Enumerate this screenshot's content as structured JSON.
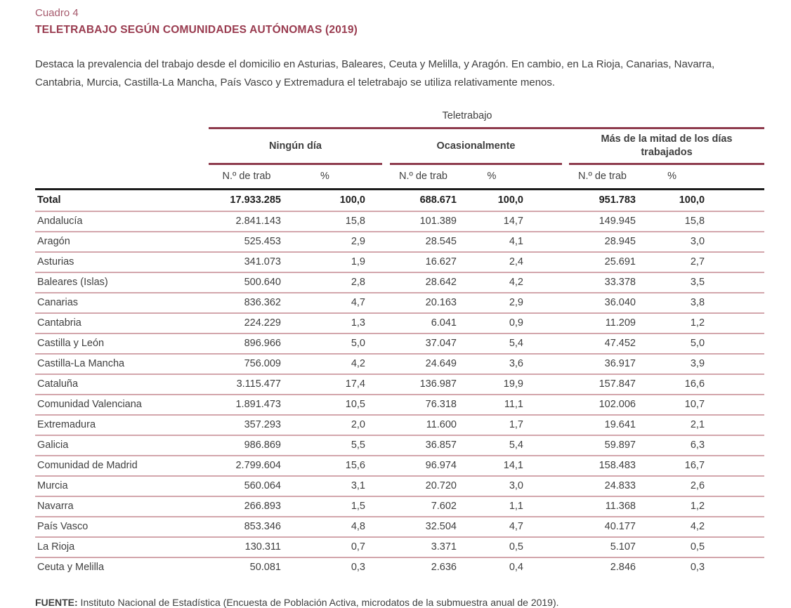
{
  "page": {
    "kicker": "Cuadro 4",
    "title": "TELETRABAJO SEGÚN COMUNIDADES AUTÓNOMAS (2019)",
    "intro": "Destaca la prevalencia del trabajo desde el domicilio en Asturias, Baleares, Ceuta y Melilla, y Aragón. En cambio, en La Rioja, Canarias, Navarra, Cantabria, Murcia, Castilla-La Mancha, País Vasco y Extremadura el teletrabajo se utiliza relativamente menos.",
    "source_label": "FUENTE:",
    "source_text": " Instituto Nacional de Estadística (Encuesta de Población Activa, microdatos de la submuestra anual de 2019)."
  },
  "colors": {
    "maroon_rule": "#8e3b4d",
    "title_text": "#993b4f",
    "kicker_text": "#a65a6d",
    "row_divider": "#d3a6ac",
    "dark_rule": "#1c1c1c",
    "body_text": "#3f3f3f"
  },
  "table": {
    "span_header": "Teletrabajo",
    "groups": [
      {
        "label": "Ningún día",
        "col1": "N.º de trab",
        "col2": "%"
      },
      {
        "label": "Ocasionalmente",
        "col1": "N.º de trab",
        "col2": "%"
      },
      {
        "label": "Más de la mitad de los días trabajados",
        "col1": "N.º de trab",
        "col2": "%"
      }
    ],
    "rows": [
      {
        "name": "Total",
        "bold": true,
        "values": [
          "17.933.285",
          "100,0",
          "688.671",
          "100,0",
          "951.783",
          "100,0"
        ]
      },
      {
        "name": "Andalucía",
        "bold": false,
        "values": [
          "2.841.143",
          "15,8",
          "101.389",
          "14,7",
          "149.945",
          "15,8"
        ]
      },
      {
        "name": "Aragón",
        "bold": false,
        "values": [
          "525.453",
          "2,9",
          "28.545",
          "4,1",
          "28.945",
          "3,0"
        ]
      },
      {
        "name": "Asturias",
        "bold": false,
        "values": [
          "341.073",
          "1,9",
          "16.627",
          "2,4",
          "25.691",
          "2,7"
        ]
      },
      {
        "name": "Baleares (Islas)",
        "bold": false,
        "values": [
          "500.640",
          "2,8",
          "28.642",
          "4,2",
          "33.378",
          "3,5"
        ]
      },
      {
        "name": "Canarias",
        "bold": false,
        "values": [
          "836.362",
          "4,7",
          "20.163",
          "2,9",
          "36.040",
          "3,8"
        ]
      },
      {
        "name": "Cantabria",
        "bold": false,
        "values": [
          "224.229",
          "1,3",
          "6.041",
          "0,9",
          "11.209",
          "1,2"
        ]
      },
      {
        "name": "Castilla y León",
        "bold": false,
        "values": [
          "896.966",
          "5,0",
          "37.047",
          "5,4",
          "47.452",
          "5,0"
        ]
      },
      {
        "name": "Castilla-La Mancha",
        "bold": false,
        "values": [
          "756.009",
          "4,2",
          "24.649",
          "3,6",
          "36.917",
          "3,9"
        ]
      },
      {
        "name": "Cataluña",
        "bold": false,
        "values": [
          "3.115.477",
          "17,4",
          "136.987",
          "19,9",
          "157.847",
          "16,6"
        ]
      },
      {
        "name": "Comunidad Valenciana",
        "bold": false,
        "values": [
          "1.891.473",
          "10,5",
          "76.318",
          "11,1",
          "102.006",
          "10,7"
        ]
      },
      {
        "name": "Extremadura",
        "bold": false,
        "values": [
          "357.293",
          "2,0",
          "11.600",
          "1,7",
          "19.641",
          "2,1"
        ]
      },
      {
        "name": "Galicia",
        "bold": false,
        "values": [
          "986.869",
          "5,5",
          "36.857",
          "5,4",
          "59.897",
          "6,3"
        ]
      },
      {
        "name": "Comunidad de Madrid",
        "bold": false,
        "values": [
          "2.799.604",
          "15,6",
          "96.974",
          "14,1",
          "158.483",
          "16,7"
        ]
      },
      {
        "name": "Murcia",
        "bold": false,
        "values": [
          "560.064",
          "3,1",
          "20.720",
          "3,0",
          "24.833",
          "2,6"
        ]
      },
      {
        "name": "Navarra",
        "bold": false,
        "values": [
          "266.893",
          "1,5",
          "7.602",
          "1,1",
          "11.368",
          "1,2"
        ]
      },
      {
        "name": "País Vasco",
        "bold": false,
        "values": [
          "853.346",
          "4,8",
          "32.504",
          "4,7",
          "40.177",
          "4,2"
        ]
      },
      {
        "name": "La Rioja",
        "bold": false,
        "values": [
          "130.311",
          "0,7",
          "3.371",
          "0,5",
          "5.107",
          "0,5"
        ]
      },
      {
        "name": "Ceuta y Melilla",
        "bold": false,
        "values": [
          "50.081",
          "0,3",
          "2.636",
          "0,4",
          "2.846",
          "0,3"
        ]
      }
    ]
  }
}
